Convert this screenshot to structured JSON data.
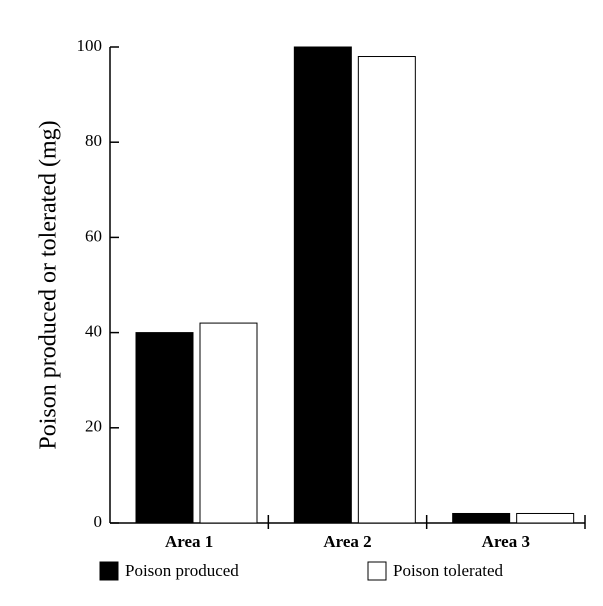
{
  "chart_data": {
    "type": "bar",
    "y_label": "Poison produced or tolerated (mg)",
    "categories": [
      "Area 1",
      "Area 2",
      "Area 3"
    ],
    "series": [
      {
        "name": "Poison produced",
        "color": "#000000",
        "values": [
          40,
          100,
          2
        ]
      },
      {
        "name": "Poison tolerated",
        "color": "#ffffff",
        "values": [
          42,
          98,
          2
        ]
      }
    ],
    "ylim": [
      0,
      100
    ],
    "yticks": [
      0,
      20,
      40,
      60,
      80,
      100
    ],
    "grid": false,
    "legend": "bottom"
  }
}
